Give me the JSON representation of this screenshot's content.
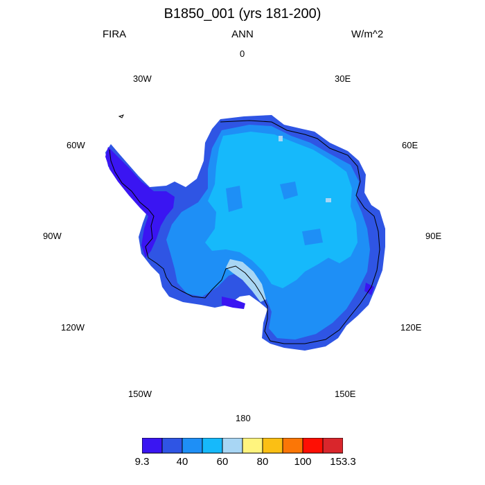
{
  "title": "B1850_001 (yrs 181-200)",
  "variable": "FIRA",
  "season": "ANN",
  "units": "W/m^2",
  "longitude_labels": [
    "0",
    "30E",
    "60E",
    "90E",
    "120E",
    "150E",
    "180",
    "150W",
    "120W",
    "90W",
    "60W",
    "30W"
  ],
  "colorbar": {
    "colors": [
      "#3a15f2",
      "#2f55e4",
      "#1e8ff6",
      "#16b9fb",
      "#a8d6f4",
      "#fff47e",
      "#fbbf14",
      "#fb7606",
      "#fe0f04",
      "#d9262c"
    ],
    "labels": [
      "9.3",
      "40",
      "60",
      "80",
      "100",
      "153.3"
    ]
  },
  "map_colors": {
    "interior": "#16b9fb",
    "mid_ring": "#1e8ff6",
    "outer_ring": "#2f55e4",
    "peninsula": "#3a15f2",
    "ice_shelf": "#a8d6f4"
  }
}
